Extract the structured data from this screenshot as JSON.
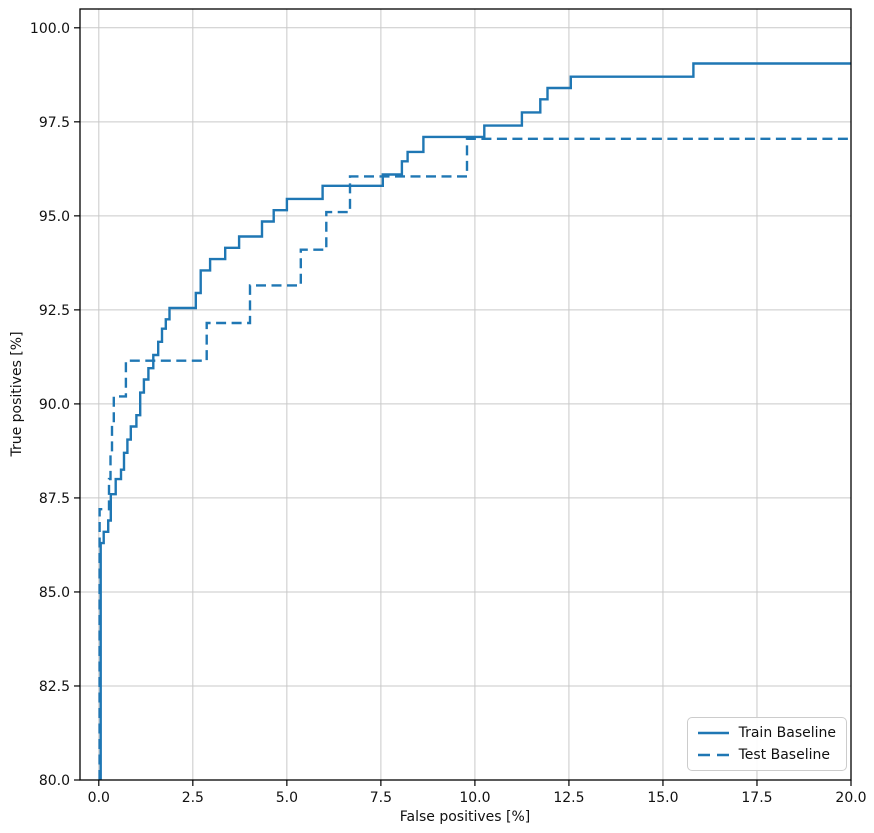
{
  "chart_data": {
    "type": "line",
    "subtype": "step-roc",
    "title": "",
    "xlabel": "False positives [%]",
    "ylabel": "True positives [%]",
    "xlim": [
      -0.5,
      20.0
    ],
    "ylim": [
      80.0,
      100.5
    ],
    "grid": true,
    "legend_position": "lower right",
    "colors": {
      "line": "#1f77b4",
      "grid": "#c9c9c9",
      "spine": "#000000",
      "legend_border": "#cccccc"
    },
    "xticks": {
      "values": [
        0,
        2.5,
        5,
        7.5,
        10,
        12.5,
        15,
        17.5,
        20
      ],
      "labels": [
        "0.0",
        "2.5",
        "5.0",
        "7.5",
        "10.0",
        "12.5",
        "15.0",
        "17.5",
        "20.0"
      ]
    },
    "yticks": {
      "values": [
        80,
        82.5,
        85,
        87.5,
        90,
        92.5,
        95,
        97.5,
        100
      ],
      "labels": [
        "80.0",
        "82.5",
        "85.0",
        "87.5",
        "90.0",
        "92.5",
        "95.0",
        "97.5",
        "100.0"
      ]
    },
    "series": [
      {
        "name": "Train Baseline",
        "style": "solid",
        "start": [
          0.05,
          80.0
        ],
        "end_x": 20.0,
        "steps": [
          [
            0.05,
            86.3
          ],
          [
            0.13,
            86.6
          ],
          [
            0.25,
            86.9
          ],
          [
            0.32,
            87.6
          ],
          [
            0.45,
            88.0
          ],
          [
            0.59,
            88.25
          ],
          [
            0.67,
            88.7
          ],
          [
            0.76,
            89.05
          ],
          [
            0.85,
            89.4
          ],
          [
            1.0,
            89.7
          ],
          [
            1.1,
            90.3
          ],
          [
            1.2,
            90.65
          ],
          [
            1.32,
            90.95
          ],
          [
            1.45,
            91.3
          ],
          [
            1.58,
            91.65
          ],
          [
            1.68,
            92.0
          ],
          [
            1.78,
            92.25
          ],
          [
            1.88,
            92.55
          ],
          [
            2.58,
            92.95
          ],
          [
            2.71,
            93.55
          ],
          [
            2.96,
            93.85
          ],
          [
            3.36,
            94.15
          ],
          [
            3.73,
            94.45
          ],
          [
            4.34,
            94.85
          ],
          [
            4.65,
            95.15
          ],
          [
            5.0,
            95.45
          ],
          [
            5.95,
            95.8
          ],
          [
            7.55,
            96.1
          ],
          [
            8.06,
            96.45
          ],
          [
            8.21,
            96.7
          ],
          [
            8.63,
            97.1
          ],
          [
            10.25,
            97.4
          ],
          [
            11.25,
            97.75
          ],
          [
            11.74,
            98.1
          ],
          [
            11.93,
            98.4
          ],
          [
            12.55,
            98.7
          ],
          [
            15.81,
            99.05
          ]
        ]
      },
      {
        "name": "Test Baseline",
        "style": "dashed",
        "start": [
          0.02,
          80.0
        ],
        "end_x": 20.0,
        "steps": [
          [
            0.02,
            87.2
          ],
          [
            0.27,
            88.0
          ],
          [
            0.31,
            88.7
          ],
          [
            0.35,
            89.5
          ],
          [
            0.4,
            90.2
          ],
          [
            0.72,
            91.15
          ],
          [
            2.87,
            92.15
          ],
          [
            4.02,
            93.15
          ],
          [
            5.37,
            94.1
          ],
          [
            6.05,
            95.1
          ],
          [
            6.68,
            96.05
          ],
          [
            9.79,
            97.05
          ]
        ]
      }
    ]
  }
}
